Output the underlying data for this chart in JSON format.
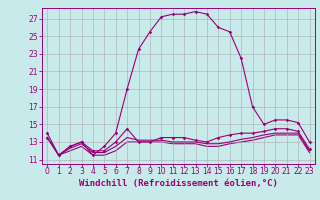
{
  "background_color": "#c8eaea",
  "grid_color": "#aaaaaa",
  "line_color": "#990077",
  "xlabel": "Windchill (Refroidissement éolien,°C)",
  "xlabel_fontsize": 6.5,
  "tick_fontsize": 5.5,
  "yticks": [
    11,
    13,
    15,
    17,
    19,
    21,
    23,
    25,
    27
  ],
  "xticks": [
    0,
    1,
    2,
    3,
    4,
    5,
    6,
    7,
    8,
    9,
    10,
    11,
    12,
    13,
    14,
    15,
    16,
    17,
    18,
    19,
    20,
    21,
    22,
    23
  ],
  "xlim": [
    -0.5,
    23.5
  ],
  "ylim": [
    10.5,
    28.2
  ],
  "series": {
    "main": [
      14.0,
      11.5,
      12.5,
      13.0,
      11.5,
      12.5,
      14.0,
      19.0,
      23.5,
      25.5,
      27.2,
      27.5,
      27.5,
      27.8,
      27.5,
      26.0,
      25.5,
      22.5,
      17.0,
      15.0,
      15.5,
      15.5,
      15.2,
      13.0
    ],
    "low1": [
      13.5,
      11.5,
      12.5,
      13.0,
      12.0,
      12.0,
      13.0,
      14.5,
      13.0,
      13.0,
      13.5,
      13.5,
      13.5,
      13.2,
      13.0,
      13.5,
      13.8,
      14.0,
      14.0,
      14.2,
      14.5,
      14.5,
      14.2,
      12.2
    ],
    "low2": [
      13.5,
      11.5,
      12.3,
      12.8,
      11.8,
      11.8,
      12.5,
      13.5,
      13.2,
      13.2,
      13.2,
      13.0,
      13.0,
      13.0,
      12.8,
      12.8,
      13.0,
      13.3,
      13.5,
      13.8,
      14.0,
      14.0,
      14.0,
      12.0
    ],
    "low3": [
      13.5,
      11.5,
      12.0,
      12.5,
      11.5,
      11.5,
      12.0,
      13.0,
      13.0,
      13.0,
      13.0,
      12.8,
      12.8,
      12.8,
      12.5,
      12.5,
      12.8,
      13.0,
      13.2,
      13.5,
      13.8,
      13.8,
      13.8,
      11.8
    ]
  }
}
